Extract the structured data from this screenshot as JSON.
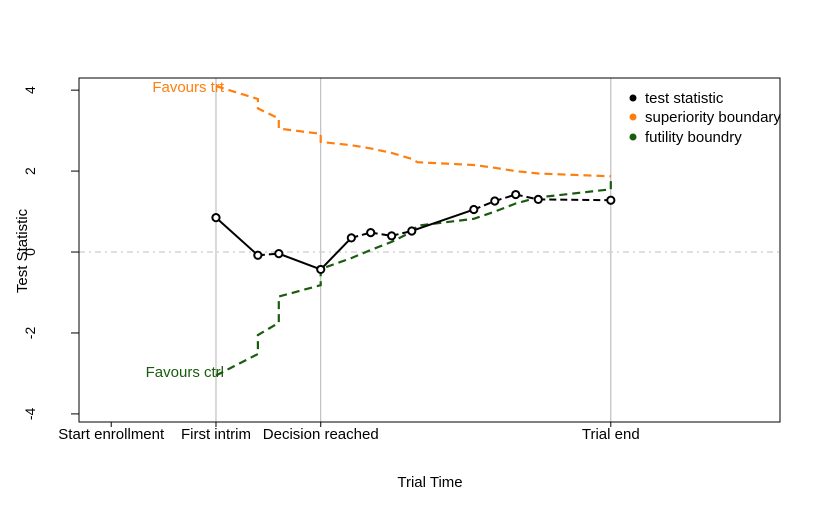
{
  "chart_data": {
    "type": "line",
    "xlabel": "Trial Time",
    "ylabel": "Test Statistic",
    "ylim": [
      -4.2,
      4.3
    ],
    "y_ticks": [
      "-4",
      "-2",
      "0",
      "2",
      "4"
    ],
    "y_tick_values": [
      -4,
      -2,
      0,
      2,
      4
    ],
    "x_time_range": [
      -1.7,
      7.0
    ],
    "x_markers": [
      {
        "label": "Start enrollment",
        "time": -1.3
      },
      {
        "label": "First intrim",
        "time": 0
      },
      {
        "label": "Decision reached",
        "time": 1.3
      },
      {
        "label": "Trial end",
        "time": 4.9
      }
    ],
    "vertical_lines_at": [
      0,
      1.3,
      4.9
    ],
    "reference_line_y": 0,
    "annotations": [
      {
        "text": "Favours trt",
        "color": "#ff7f0e"
      },
      {
        "text": "Favours ctrl",
        "color": "#1a5c0f"
      }
    ],
    "legend": {
      "position": "top-right",
      "entries": [
        {
          "label": "test statistic",
          "color": "#000000"
        },
        {
          "label": "superiority boundary",
          "color": "#ff7f0e"
        },
        {
          "label": "futility boundry",
          "color": "#1a5c0f"
        }
      ]
    },
    "series": [
      {
        "name": "test statistic",
        "color": "#000000",
        "style": "points-and-lines",
        "points": [
          {
            "x": 0.0,
            "y": 0.85
          },
          {
            "x": 0.52,
            "y": -0.08
          },
          {
            "x": 0.78,
            "y": -0.04
          },
          {
            "x": 1.3,
            "y": -0.43
          },
          {
            "x": 1.68,
            "y": 0.35
          },
          {
            "x": 1.92,
            "y": 0.48
          },
          {
            "x": 2.18,
            "y": 0.4
          },
          {
            "x": 2.43,
            "y": 0.52
          },
          {
            "x": 3.2,
            "y": 1.05
          },
          {
            "x": 3.46,
            "y": 1.26
          },
          {
            "x": 3.72,
            "y": 1.42
          },
          {
            "x": 4.0,
            "y": 1.3
          },
          {
            "x": 4.9,
            "y": 1.28
          }
        ],
        "segment_styles": [
          "solid",
          "dashed",
          "solid",
          "solid",
          "dashed",
          "dashed",
          "dashed",
          "solid",
          "dashed",
          "dashed",
          "dashed",
          "dashed"
        ]
      },
      {
        "name": "superiority boundary",
        "color": "#ff7f0e",
        "style": "dashed",
        "points": [
          {
            "x": 0.0,
            "y": 4.1
          },
          {
            "x": 0.52,
            "y": 3.78
          },
          {
            "x": 0.52,
            "y": 3.55
          },
          {
            "x": 0.78,
            "y": 3.3
          },
          {
            "x": 0.78,
            "y": 3.05
          },
          {
            "x": 1.3,
            "y": 2.92
          },
          {
            "x": 1.3,
            "y": 2.72
          },
          {
            "x": 1.68,
            "y": 2.64
          },
          {
            "x": 1.92,
            "y": 2.56
          },
          {
            "x": 2.18,
            "y": 2.45
          },
          {
            "x": 2.43,
            "y": 2.3
          },
          {
            "x": 2.5,
            "y": 2.22
          },
          {
            "x": 3.2,
            "y": 2.15
          },
          {
            "x": 3.46,
            "y": 2.08
          },
          {
            "x": 3.72,
            "y": 2.0
          },
          {
            "x": 4.0,
            "y": 1.94
          },
          {
            "x": 4.9,
            "y": 1.87
          }
        ]
      },
      {
        "name": "futility boundry",
        "color": "#1a5c0f",
        "style": "dashed",
        "points": [
          {
            "x": 0.0,
            "y": -3.05
          },
          {
            "x": 0.52,
            "y": -2.52
          },
          {
            "x": 0.52,
            "y": -2.05
          },
          {
            "x": 0.78,
            "y": -1.75
          },
          {
            "x": 0.78,
            "y": -1.1
          },
          {
            "x": 1.3,
            "y": -0.82
          },
          {
            "x": 1.3,
            "y": -0.42
          },
          {
            "x": 1.68,
            "y": -0.15
          },
          {
            "x": 1.92,
            "y": 0.05
          },
          {
            "x": 2.18,
            "y": 0.25
          },
          {
            "x": 2.43,
            "y": 0.5
          },
          {
            "x": 2.5,
            "y": 0.65
          },
          {
            "x": 3.2,
            "y": 0.82
          },
          {
            "x": 3.46,
            "y": 1.0
          },
          {
            "x": 3.72,
            "y": 1.2
          },
          {
            "x": 4.0,
            "y": 1.35
          },
          {
            "x": 4.9,
            "y": 1.55
          },
          {
            "x": 4.9,
            "y": 1.8
          }
        ]
      }
    ]
  }
}
